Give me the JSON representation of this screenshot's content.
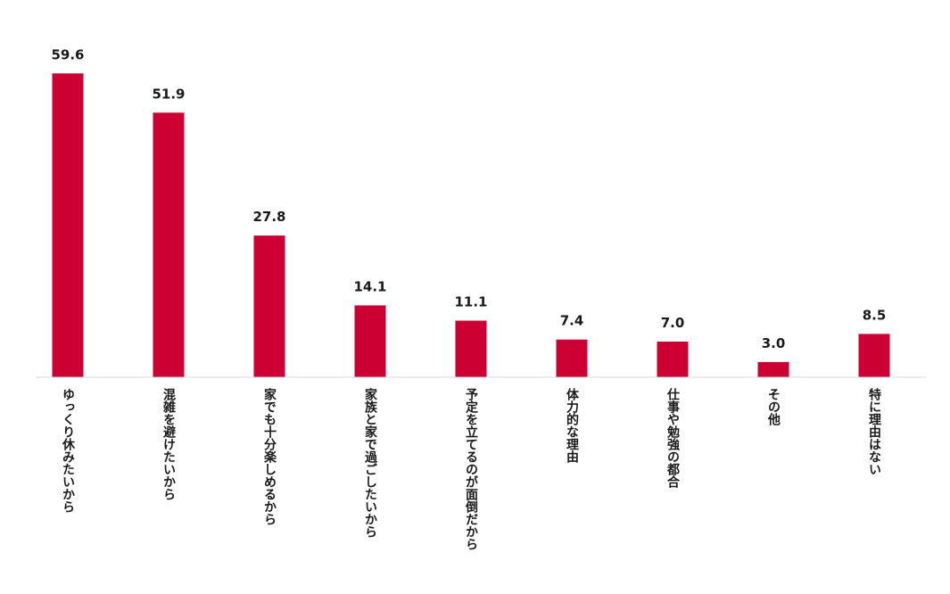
{
  "chart_data": {
    "type": "bar",
    "categories": [
      "ゆっくり休みたいから",
      "混雑を避けたいから",
      "家でも十分楽しめるから",
      "家族と家で過ごしたいから",
      "予定を立てるのが面倒だから",
      "体力的な理由",
      "仕事や勉強の都合",
      "その他",
      "特に理由はない"
    ],
    "values": [
      59.6,
      51.9,
      27.8,
      14.1,
      11.1,
      7.4,
      7.0,
      3.0,
      8.5
    ],
    "value_labels": [
      "59.6",
      "51.9",
      "27.8",
      "14.1",
      "11.1",
      "7.4",
      "7.0",
      "3.0",
      "8.5"
    ],
    "title": "",
    "xlabel": "",
    "ylabel": "",
    "ylim": [
      0,
      60
    ],
    "grid": false,
    "legend": "none",
    "bar_color": "#cc0033",
    "axis_color": "#d9d9d9"
  }
}
